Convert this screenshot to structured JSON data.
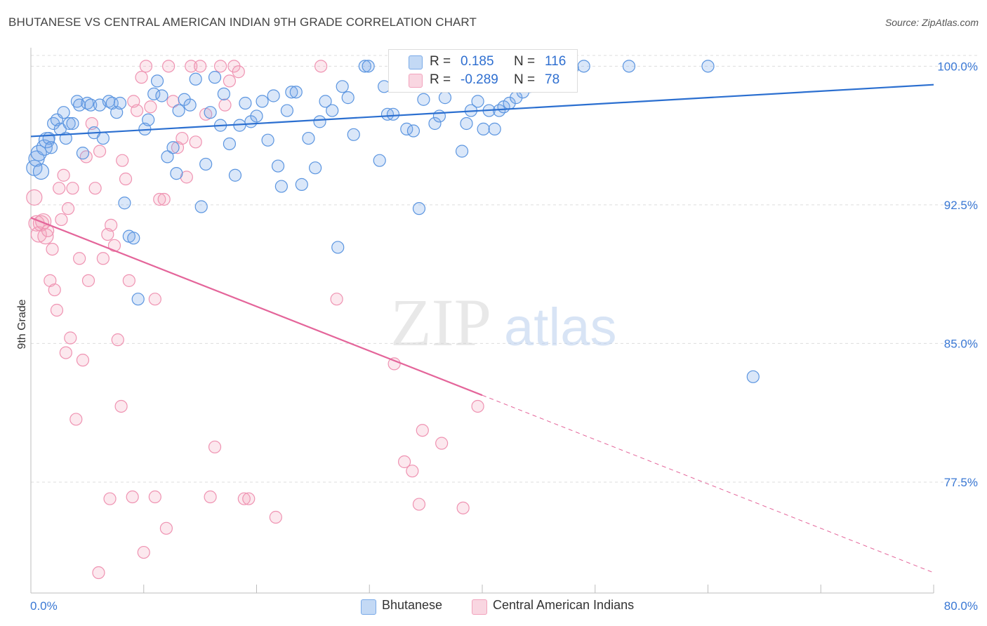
{
  "title": "BHUTANESE VS CENTRAL AMERICAN INDIAN 9TH GRADE CORRELATION CHART",
  "source": "Source: ZipAtlas.com",
  "watermark": {
    "zip": "ZIP",
    "atlas": "atlas"
  },
  "legend": {
    "rows": [
      {
        "r_label": "R =",
        "r_value": "0.185",
        "n_label": "N =",
        "n_value": "116",
        "color": "#7aaae8"
      },
      {
        "r_label": "R =",
        "r_value": "-0.289",
        "n_label": "N =",
        "n_value": "78",
        "color": "#f2a3bd"
      }
    ]
  },
  "bottom_legend": [
    {
      "label": "Bhutanese",
      "color": "#7aaae8"
    },
    {
      "label": "Central American Indians",
      "color": "#f2a3bd"
    }
  ],
  "colors": {
    "blue_fill": "rgba(122,170,232,0.28)",
    "blue_stroke": "#5b95e0",
    "blue_line": "#2b6fd0",
    "pink_fill": "rgba(242,163,189,0.25)",
    "pink_stroke": "#ef93b2",
    "pink_line": "#e4659a",
    "grid": "#dddddd",
    "axis_label": "#3a78d4"
  },
  "chart_data": {
    "type": "scatter",
    "title": "BHUTANESE VS CENTRAL AMERICAN INDIAN 9TH GRADE CORRELATION CHART",
    "ylabel": "9th Grade",
    "xlabel": "",
    "xlim": [
      0,
      80
    ],
    "ylim": [
      71.5,
      101.0
    ],
    "x_tick_labels": [
      "0.0%",
      "80.0%"
    ],
    "y_ticks": [
      77.5,
      85.0,
      92.5,
      100.0
    ],
    "y_tick_labels": [
      "77.5%",
      "85.0%",
      "92.5%",
      "100.0%"
    ],
    "grid": true,
    "series": [
      {
        "name": "Bhutanese",
        "trend": {
          "x0": 0,
          "y0": 96.2,
          "x1": 80,
          "y1": 99.0
        },
        "points": [
          [
            0.3,
            94.5
          ],
          [
            0.5,
            95.0
          ],
          [
            0.7,
            95.3
          ],
          [
            0.9,
            94.3
          ],
          [
            1.2,
            95.6
          ],
          [
            1.4,
            96.0
          ],
          [
            1.6,
            96.1
          ],
          [
            1.8,
            95.6
          ],
          [
            2.0,
            96.9
          ],
          [
            2.3,
            97.1
          ],
          [
            2.6,
            96.6
          ],
          [
            2.9,
            97.5
          ],
          [
            3.1,
            96.1
          ],
          [
            3.4,
            96.9
          ],
          [
            3.7,
            96.9
          ],
          [
            4.1,
            98.1
          ],
          [
            4.3,
            97.9
          ],
          [
            4.6,
            95.3
          ],
          [
            5.0,
            98.0
          ],
          [
            5.3,
            97.9
          ],
          [
            5.6,
            96.4
          ],
          [
            6.1,
            97.9
          ],
          [
            6.4,
            96.1
          ],
          [
            6.9,
            98.1
          ],
          [
            7.2,
            98.0
          ],
          [
            7.6,
            97.5
          ],
          [
            7.9,
            98.0
          ],
          [
            8.3,
            92.6
          ],
          [
            8.7,
            90.8
          ],
          [
            9.1,
            90.7
          ],
          [
            9.5,
            87.4
          ],
          [
            10.1,
            96.6
          ],
          [
            10.4,
            97.1
          ],
          [
            10.9,
            98.5
          ],
          [
            11.2,
            99.2
          ],
          [
            11.6,
            98.4
          ],
          [
            12.1,
            95.1
          ],
          [
            12.6,
            95.6
          ],
          [
            12.9,
            94.2
          ],
          [
            13.1,
            97.6
          ],
          [
            13.6,
            98.2
          ],
          [
            14.1,
            97.9
          ],
          [
            14.6,
            99.3
          ],
          [
            15.1,
            92.4
          ],
          [
            15.5,
            94.7
          ],
          [
            15.9,
            97.5
          ],
          [
            16.3,
            99.4
          ],
          [
            16.8,
            96.8
          ],
          [
            17.1,
            98.5
          ],
          [
            17.6,
            95.8
          ],
          [
            18.1,
            94.1
          ],
          [
            18.5,
            96.8
          ],
          [
            19.0,
            98.0
          ],
          [
            19.5,
            97.0
          ],
          [
            20.0,
            97.3
          ],
          [
            20.5,
            98.1
          ],
          [
            21.0,
            96.0
          ],
          [
            21.5,
            98.4
          ],
          [
            21.9,
            94.6
          ],
          [
            22.2,
            93.5
          ],
          [
            22.7,
            97.6
          ],
          [
            23.1,
            98.6
          ],
          [
            23.5,
            98.6
          ],
          [
            24.0,
            93.6
          ],
          [
            24.6,
            96.1
          ],
          [
            25.2,
            94.5
          ],
          [
            25.6,
            97.0
          ],
          [
            26.1,
            98.1
          ],
          [
            26.7,
            97.6
          ],
          [
            27.2,
            90.2
          ],
          [
            27.6,
            98.9
          ],
          [
            28.1,
            98.3
          ],
          [
            28.6,
            96.3
          ],
          [
            29.6,
            100.0
          ],
          [
            29.9,
            100.0
          ],
          [
            30.9,
            94.9
          ],
          [
            31.3,
            98.9
          ],
          [
            31.6,
            97.4
          ],
          [
            32.1,
            97.4
          ],
          [
            32.9,
            100.0
          ],
          [
            33.3,
            96.6
          ],
          [
            33.9,
            96.5
          ],
          [
            34.4,
            92.3
          ],
          [
            34.8,
            98.2
          ],
          [
            35.3,
            100.0
          ],
          [
            35.8,
            96.9
          ],
          [
            36.2,
            97.3
          ],
          [
            36.7,
            98.3
          ],
          [
            37.2,
            99.2
          ],
          [
            37.6,
            99.6
          ],
          [
            38.2,
            95.4
          ],
          [
            38.6,
            96.9
          ],
          [
            39.0,
            97.6
          ],
          [
            39.6,
            98.1
          ],
          [
            40.1,
            96.6
          ],
          [
            40.6,
            97.6
          ],
          [
            41.1,
            96.6
          ],
          [
            41.5,
            97.6
          ],
          [
            41.9,
            97.8
          ],
          [
            42.4,
            98.0
          ],
          [
            43.0,
            98.3
          ],
          [
            43.6,
            98.6
          ],
          [
            44.2,
            98.9
          ],
          [
            44.9,
            99.3
          ],
          [
            45.5,
            99.7
          ],
          [
            46.2,
            100.0
          ],
          [
            47.0,
            100.0
          ],
          [
            48.0,
            99.9
          ],
          [
            49.0,
            100.0
          ],
          [
            53.0,
            100.0
          ],
          [
            60.0,
            100.0
          ],
          [
            64.0,
            83.2
          ]
        ]
      },
      {
        "name": "Central American Indians",
        "trend": {
          "x0": 0,
          "y0": 91.8,
          "x1": 40,
          "y1": 82.2,
          "dash_x1": 80,
          "dash_y1": 72.6
        },
        "points": [
          [
            0.3,
            92.9
          ],
          [
            0.5,
            91.5
          ],
          [
            0.7,
            90.9
          ],
          [
            0.9,
            91.5
          ],
          [
            1.1,
            91.6
          ],
          [
            1.3,
            90.8
          ],
          [
            1.5,
            91.1
          ],
          [
            1.7,
            88.4
          ],
          [
            1.9,
            90.1
          ],
          [
            2.1,
            87.9
          ],
          [
            2.3,
            86.8
          ],
          [
            2.5,
            93.4
          ],
          [
            2.7,
            91.7
          ],
          [
            2.9,
            94.1
          ],
          [
            3.1,
            84.5
          ],
          [
            3.3,
            92.3
          ],
          [
            3.5,
            85.3
          ],
          [
            3.7,
            93.4
          ],
          [
            4.0,
            80.9
          ],
          [
            4.3,
            89.6
          ],
          [
            4.6,
            84.1
          ],
          [
            4.9,
            95.1
          ],
          [
            5.1,
            88.4
          ],
          [
            5.4,
            96.9
          ],
          [
            5.7,
            93.4
          ],
          [
            6.1,
            95.4
          ],
          [
            6.4,
            89.6
          ],
          [
            6.8,
            90.9
          ],
          [
            7.1,
            91.4
          ],
          [
            7.4,
            90.3
          ],
          [
            7.7,
            85.2
          ],
          [
            8.1,
            94.9
          ],
          [
            8.4,
            93.9
          ],
          [
            8.7,
            88.4
          ],
          [
            9.1,
            98.1
          ],
          [
            9.4,
            97.6
          ],
          [
            9.8,
            99.4
          ],
          [
            10.2,
            100.0
          ],
          [
            10.6,
            97.8
          ],
          [
            11.0,
            87.4
          ],
          [
            11.4,
            92.8
          ],
          [
            11.8,
            92.8
          ],
          [
            12.2,
            100.0
          ],
          [
            12.6,
            98.1
          ],
          [
            13.0,
            95.6
          ],
          [
            13.4,
            96.1
          ],
          [
            13.8,
            94.0
          ],
          [
            14.2,
            100.0
          ],
          [
            14.6,
            95.9
          ],
          [
            15.0,
            100.0
          ],
          [
            15.5,
            97.4
          ],
          [
            15.9,
            76.7
          ],
          [
            16.3,
            79.4
          ],
          [
            16.8,
            100.0
          ],
          [
            17.2,
            97.9
          ],
          [
            17.6,
            99.2
          ],
          [
            18.0,
            100.0
          ],
          [
            18.4,
            99.7
          ],
          [
            18.9,
            76.6
          ],
          [
            19.3,
            76.6
          ],
          [
            6.0,
            72.6
          ],
          [
            7.0,
            76.6
          ],
          [
            8.0,
            81.6
          ],
          [
            9.0,
            76.7
          ],
          [
            10.0,
            73.7
          ],
          [
            11.0,
            76.7
          ],
          [
            12.0,
            75.0
          ],
          [
            21.7,
            75.6
          ],
          [
            25.7,
            100.0
          ],
          [
            27.1,
            87.4
          ],
          [
            32.2,
            83.9
          ],
          [
            33.1,
            78.6
          ],
          [
            33.8,
            78.1
          ],
          [
            34.4,
            76.3
          ],
          [
            34.7,
            80.3
          ],
          [
            36.4,
            79.6
          ],
          [
            38.3,
            76.1
          ],
          [
            39.6,
            81.6
          ]
        ]
      }
    ]
  }
}
